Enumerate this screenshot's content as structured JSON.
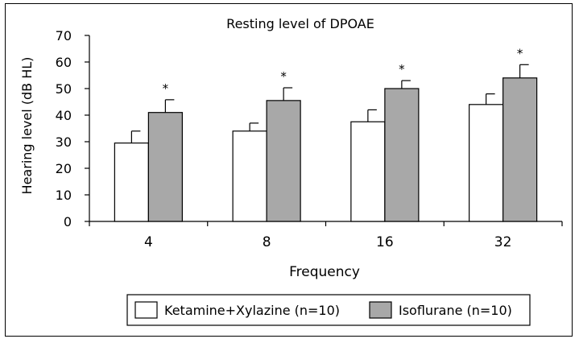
{
  "chart_data": {
    "type": "bar",
    "title": "Resting level of DPOAE",
    "xlabel": "Frequency",
    "ylabel": "Hearing level (dB HL)",
    "ylim": [
      0,
      70
    ],
    "yticks": [
      0,
      10,
      20,
      30,
      40,
      50,
      60,
      70
    ],
    "categories": [
      "4",
      "8",
      "16",
      "32"
    ],
    "series": [
      {
        "name": "Ketamine+Xylazine (n=10)",
        "color": "#ffffff",
        "values": [
          29.5,
          34.0,
          37.5,
          44.0
        ],
        "errors": [
          4.5,
          3.0,
          4.5,
          4.0
        ]
      },
      {
        "name": "Isoflurane (n=10)",
        "color": "#a8a8a8",
        "values": [
          41.0,
          45.5,
          50.0,
          54.0
        ],
        "errors": [
          4.8,
          4.8,
          3.0,
          5.0
        ]
      }
    ],
    "annotations": [
      "*",
      "*",
      "*",
      "*"
    ],
    "grid": false,
    "legend": "bottom"
  }
}
